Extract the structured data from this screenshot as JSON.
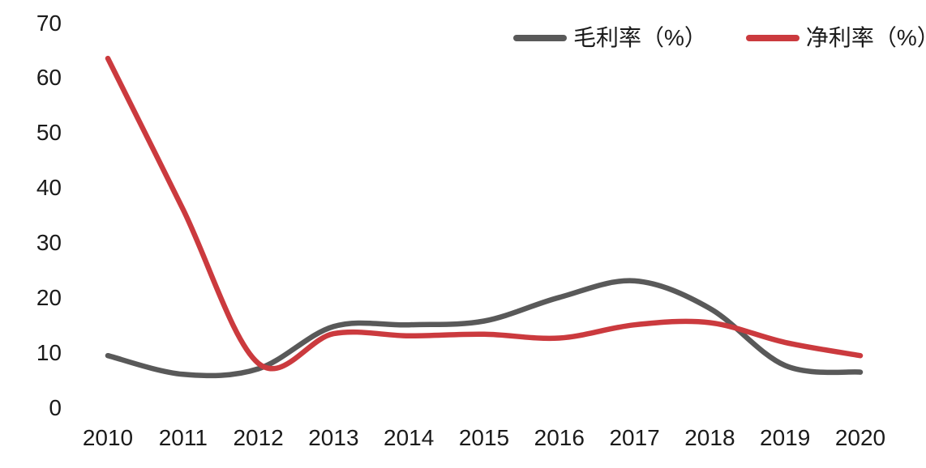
{
  "chart_data": {
    "type": "line",
    "title": "",
    "xlabel": "",
    "ylabel": "",
    "categories": [
      "2010",
      "2011",
      "2012",
      "2013",
      "2014",
      "2015",
      "2016",
      "2017",
      "2018",
      "2019",
      "2020"
    ],
    "series": [
      {
        "name": "毛利率（%）",
        "color": "#595959",
        "values": [
          9.4,
          6.0,
          7.0,
          14.7,
          15.0,
          15.7,
          20.0,
          23.0,
          18.0,
          7.6,
          6.4
        ]
      },
      {
        "name": "净利率（%）",
        "color": "#CB3A3E",
        "values": [
          63.5,
          36.0,
          8.0,
          13.4,
          13.0,
          13.3,
          12.6,
          15.0,
          15.4,
          11.8,
          9.4
        ]
      }
    ],
    "ylim": [
      0,
      70
    ],
    "y_ticks": [
      0,
      10,
      20,
      30,
      40,
      50,
      60,
      70
    ],
    "grid": false,
    "axis_lines": false,
    "smooth": true,
    "legend_position": "top-right",
    "text_color": "#1a1a1a",
    "background_color": "#ffffff"
  }
}
